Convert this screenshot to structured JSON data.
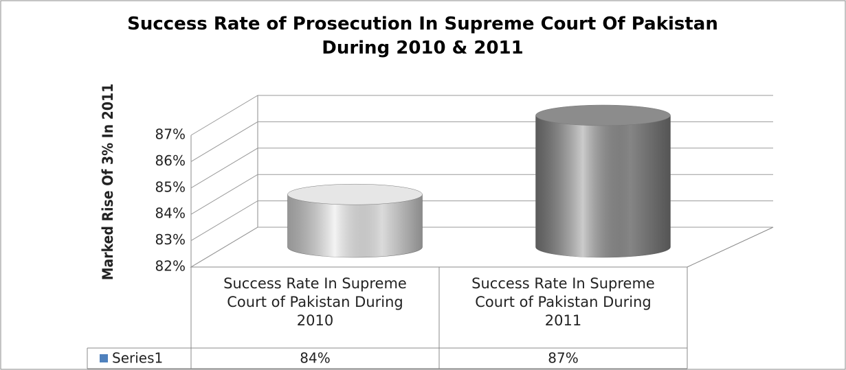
{
  "chart_data": {
    "type": "bar3d",
    "title": "Success Rate of Prosecution In Supreme Court Of Pakistan During 2010 & 2011",
    "y_label": "Marked Rise Of 3% In 2011",
    "categories": [
      "Success Rate In Supreme Court of Pakistan During 2010",
      "Success Rate In Supreme Court of Pakistan During 2011"
    ],
    "series": [
      {
        "name": "Series1",
        "color": "#4f81bd",
        "values": [
          84,
          87
        ],
        "value_labels": [
          "84%",
          "87%"
        ]
      }
    ],
    "bar_colors": [
      "#e6e6e6",
      "#8c8c8c"
    ],
    "ylim": [
      82,
      87
    ],
    "yticks": [
      {
        "value": 82,
        "label": "82%"
      },
      {
        "value": 83,
        "label": "83%"
      },
      {
        "value": 84,
        "label": "84%"
      },
      {
        "value": 85,
        "label": "85%"
      },
      {
        "value": 86,
        "label": "86%"
      },
      {
        "value": 87,
        "label": "87%"
      }
    ],
    "grid": true
  }
}
